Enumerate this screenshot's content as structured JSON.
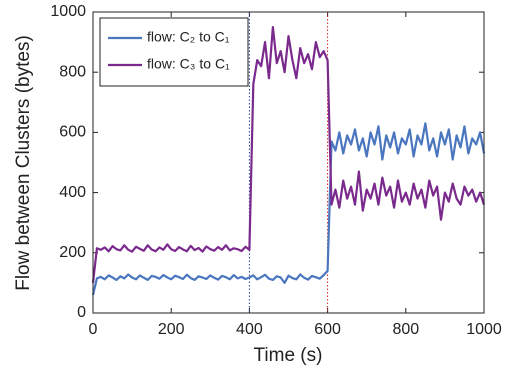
{
  "chart_data": {
    "type": "line",
    "xlabel": "Time (s)",
    "ylabel": "Flow between Clusters (bytes)",
    "x": [
      0,
      10,
      20,
      30,
      40,
      50,
      60,
      70,
      80,
      90,
      100,
      110,
      120,
      130,
      140,
      150,
      160,
      170,
      180,
      190,
      200,
      210,
      220,
      230,
      240,
      250,
      260,
      270,
      280,
      290,
      300,
      310,
      320,
      330,
      340,
      350,
      360,
      370,
      380,
      390,
      400,
      410,
      420,
      430,
      440,
      450,
      460,
      470,
      480,
      490,
      500,
      510,
      520,
      530,
      540,
      550,
      560,
      570,
      580,
      590,
      600,
      610,
      620,
      630,
      640,
      650,
      660,
      670,
      680,
      690,
      700,
      710,
      720,
      730,
      740,
      750,
      760,
      770,
      780,
      790,
      800,
      810,
      820,
      830,
      840,
      850,
      860,
      870,
      880,
      890,
      900,
      910,
      920,
      930,
      940,
      950,
      960,
      970,
      980,
      990,
      1000
    ],
    "series": [
      {
        "name": "flow: C₂ to C₁",
        "color": "#4a76bf",
        "values": [
          60,
          115,
          120,
          112,
          125,
          118,
          110,
          122,
          115,
          128,
          118,
          112,
          125,
          117,
          110,
          123,
          120,
          114,
          126,
          118,
          112,
          124,
          119,
          113,
          127,
          116,
          110,
          122,
          118,
          113,
          125,
          117,
          111,
          123,
          119,
          112,
          126,
          115,
          120,
          113,
          118,
          125,
          112,
          119,
          127,
          114,
          110,
          122,
          118,
          100,
          124,
          116,
          112,
          128,
          117,
          111,
          123,
          119,
          114,
          126,
          140,
          570,
          540,
          600,
          530,
          590,
          560,
          610,
          540,
          580,
          520,
          600,
          560,
          620,
          510,
          590,
          550,
          600,
          530,
          580,
          560,
          610,
          520,
          590,
          560,
          630,
          540,
          580,
          520,
          600,
          560,
          610,
          510,
          590,
          550,
          620,
          530,
          580,
          560,
          600,
          530
        ]
      },
      {
        "name": "flow: C₃ to C₁",
        "color": "#7a2a8c",
        "values": [
          100,
          215,
          210,
          218,
          205,
          222,
          212,
          208,
          225,
          210,
          204,
          220,
          213,
          207,
          225,
          211,
          205,
          218,
          210,
          228,
          212,
          206,
          219,
          211,
          205,
          223,
          209,
          216,
          204,
          221,
          212,
          207,
          219,
          210,
          225,
          208,
          215,
          212,
          206,
          220,
          210,
          760,
          840,
          820,
          900,
          780,
          950,
          830,
          870,
          800,
          920,
          840,
          780,
          880,
          830,
          860,
          810,
          900,
          850,
          870,
          840,
          360,
          410,
          350,
          440,
          380,
          420,
          360,
          470,
          340,
          410,
          380,
          430,
          360,
          450,
          390,
          420,
          350,
          440,
          370,
          400,
          360,
          430,
          380,
          410,
          350,
          440,
          390,
          420,
          310,
          400,
          370,
          430,
          380,
          360,
          420,
          390,
          410,
          370,
          400,
          360
        ]
      }
    ],
    "vlines": [
      {
        "x": 400,
        "color": "#2a3f9e"
      },
      {
        "x": 600,
        "color": "#d62020"
      }
    ],
    "xlim": [
      0,
      1000
    ],
    "xticks": [
      0,
      200,
      400,
      600,
      800,
      1000
    ],
    "ylim": [
      0,
      1000
    ],
    "yticks": [
      0,
      200,
      400,
      600,
      800,
      1000
    ],
    "grid": false,
    "legend": "northwest"
  }
}
